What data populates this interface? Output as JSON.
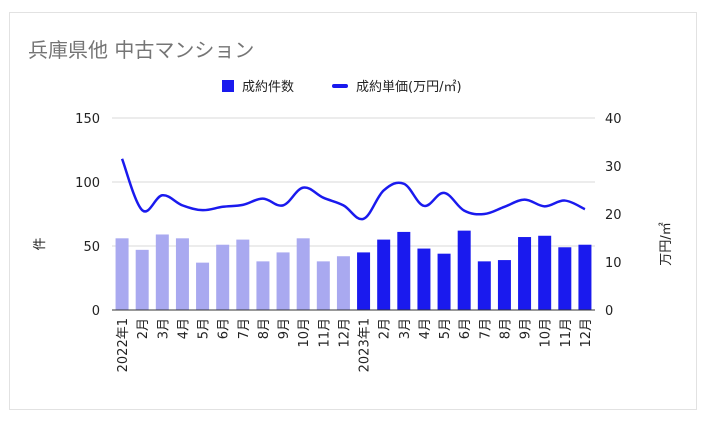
{
  "chart_data": {
    "type": "bar",
    "title": "兵庫県他 中古マンション",
    "categories": [
      "2022年1",
      "2月",
      "3月",
      "4月",
      "5月",
      "6月",
      "7月",
      "8月",
      "9月",
      "10月",
      "11月",
      "12月",
      "2023年1",
      "2月",
      "3月",
      "4月",
      "5月",
      "6月",
      "7月",
      "8月",
      "9月",
      "10月",
      "11月",
      "12月"
    ],
    "series": [
      {
        "name": "成約件数",
        "type": "bar",
        "axis": "left",
        "values": [
          56,
          47,
          59,
          56,
          37,
          51,
          55,
          38,
          45,
          56,
          38,
          42,
          45,
          55,
          61,
          48,
          44,
          62,
          38,
          39,
          57,
          58,
          49,
          51
        ],
        "colors": {
          "2022": "#a9a9f0",
          "2023": "#1a1aee"
        }
      },
      {
        "name": "成約単価(万円/㎡)",
        "type": "line",
        "axis": "right",
        "values": [
          31.5,
          20.8,
          23.9,
          21.8,
          20.8,
          21.5,
          21.9,
          23.2,
          21.8,
          25.5,
          23.4,
          21.8,
          19.0,
          24.9,
          26.3,
          21.7,
          24.4,
          20.7,
          20.0,
          21.5,
          23.0,
          21.6,
          22.8,
          21.0
        ],
        "color": "#1a1aee"
      }
    ],
    "ylabel_left": "件",
    "ylabel_right": "万円/㎡",
    "ylim_left": [
      0,
      150
    ],
    "ylim_right": [
      0,
      40
    ],
    "yticks_left": [
      "0",
      "50",
      "100",
      "150"
    ],
    "yticks_right": [
      "0",
      "10",
      "20",
      "30",
      "40"
    ],
    "grid": true,
    "legend_position": "top"
  }
}
